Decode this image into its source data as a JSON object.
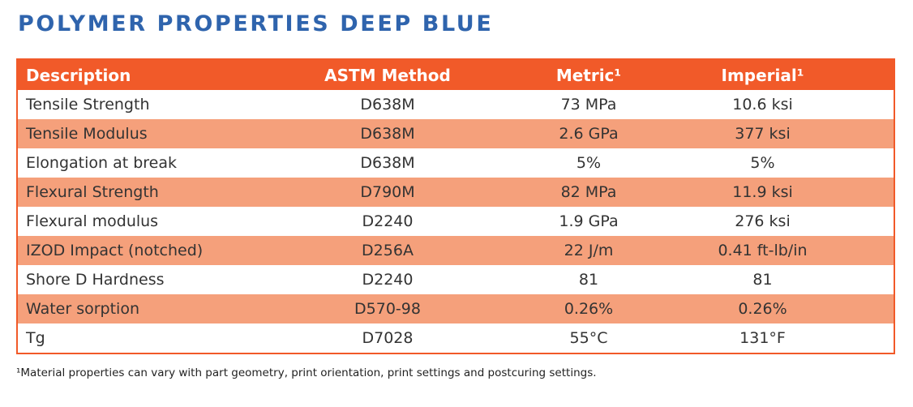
{
  "title": "POLYMER PROPERTIES DEEP BLUE",
  "table": {
    "header": [
      "Description",
      "ASTM Method",
      "Metric¹",
      "Imperial¹"
    ],
    "rows": [
      [
        "Tensile Strength",
        "D638M",
        "73 MPa",
        "10.6 ksi"
      ],
      [
        "Tensile Modulus",
        "D638M",
        "2.6 GPa",
        "377 ksi"
      ],
      [
        "Elongation at break",
        "D638M",
        "5%",
        "5%"
      ],
      [
        "Flexural Strength",
        "D790M",
        "82 MPa",
        "11.9 ksi"
      ],
      [
        "Flexural modulus",
        "D2240",
        "1.9 GPa",
        "276 ksi"
      ],
      [
        "IZOD Impact (notched)",
        "D256A",
        "22 J/m",
        "0.41 ft-lb/in"
      ],
      [
        "Shore D Hardness",
        "D2240",
        "81",
        "81"
      ],
      [
        "Water sorption",
        "D570-98",
        "0.26%",
        "0.26%"
      ],
      [
        "Tg",
        "D7028",
        "55°C",
        "131°F"
      ]
    ]
  },
  "footnote": "¹Material properties can vary with part geometry, print orientation, print settings and postcuring settings."
}
